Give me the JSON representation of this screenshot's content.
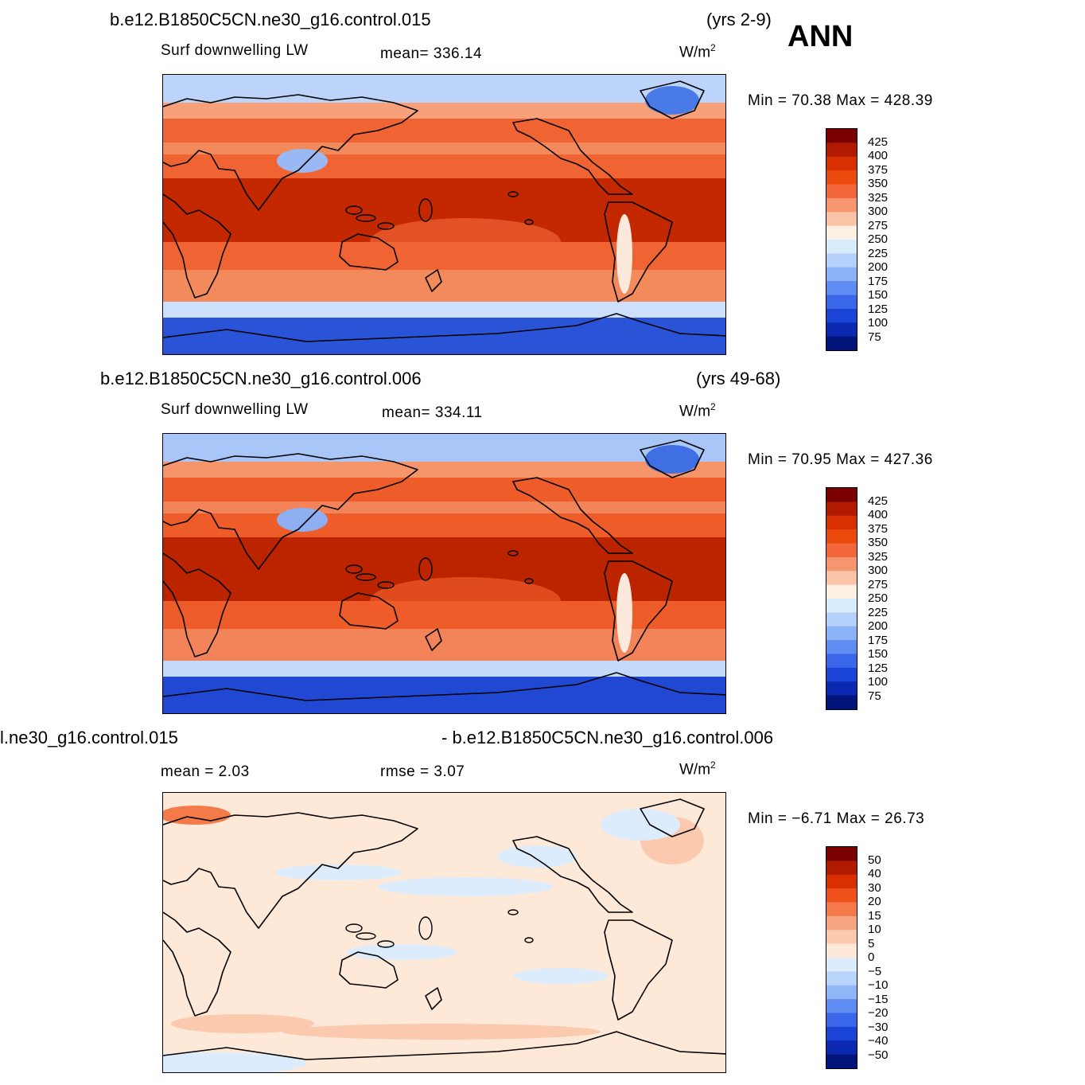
{
  "ann_label": "ANN",
  "panels": [
    {
      "case": "b.e12.B1850C5CN.ne30_g16.control.015",
      "years": "(yrs 2-9)",
      "variable": "Surf  downwelling  LW",
      "stat1": "mean=  336.14",
      "stat2": "",
      "units_base": "W/m",
      "units_exp": "2",
      "minmax": "Min =    70.38  Max  =  428.39",
      "colorbar": {
        "labels": [
          "425",
          "400",
          "375",
          "350",
          "325",
          "300",
          "275",
          "250",
          "225",
          "200",
          "175",
          "150",
          "125",
          "100",
          "75"
        ],
        "colors": [
          "#7a0000",
          "#b01a00",
          "#d83000",
          "#ea4a0c",
          "#f2663a",
          "#f7966e",
          "#fbc4a6",
          "#fff0e4",
          "#d8ecfc",
          "#b4d0fb",
          "#8cb2f8",
          "#5f8cf2",
          "#3a66ea",
          "#1a44d6",
          "#0a28b0",
          "#00147a"
        ]
      },
      "map_fields": {
        "arctic": "#bcd4fa",
        "north_mid": "#f8a07a",
        "subtropic": "#f06434",
        "tropic": "#c42800",
        "south_mid": "#f38a5c",
        "southern_ocean": "#cce0fb",
        "antarctic": "#2a54d8",
        "tibet": "#9ab8f4",
        "greenland": "#4a7ae6"
      }
    },
    {
      "case": "b.e12.B1850C5CN.ne30_g16.control.006",
      "years": "(yrs 49-68)",
      "variable": "Surf  downwelling  LW",
      "stat1": "mean=  334.11",
      "stat2": "",
      "units_base": "W/m",
      "units_exp": "2",
      "minmax": "Min =    70.95  Max  =  427.36",
      "colorbar": {
        "labels": [
          "425",
          "400",
          "375",
          "350",
          "325",
          "300",
          "275",
          "250",
          "225",
          "200",
          "175",
          "150",
          "125",
          "100",
          "75"
        ],
        "colors": [
          "#7a0000",
          "#b01a00",
          "#d83000",
          "#ea4a0c",
          "#f2663a",
          "#f7966e",
          "#fbc4a6",
          "#fff0e4",
          "#d8ecfc",
          "#b4d0fb",
          "#8cb2f8",
          "#5f8cf2",
          "#3a66ea",
          "#1a44d6",
          "#0a28b0",
          "#00147a"
        ]
      },
      "map_fields": {
        "arctic": "#a8c6f8",
        "north_mid": "#f6946a",
        "subtropic": "#ee5c2a",
        "tropic": "#bc2400",
        "south_mid": "#f3845a",
        "southern_ocean": "#c4dafb",
        "antarctic": "#2048d2",
        "tibet": "#8eaef2",
        "greenland": "#3f6fe2"
      }
    },
    {
      "case": "l.ne30_g16.control.015",
      "years": "- b.e12.B1850C5CN.ne30_g16.control.006",
      "variable": "",
      "stat1": "mean =     2.03",
      "stat2": "rmse =     3.07",
      "units_base": "W/m",
      "units_exp": "2",
      "minmax": "Min =   −6.71  Max  =    26.73",
      "colorbar": {
        "labels": [
          "50",
          "40",
          "30",
          "20",
          "15",
          "10",
          "5",
          "0",
          "−5",
          "−10",
          "−15",
          "−20",
          "−30",
          "−40",
          "−50"
        ],
        "colors": [
          "#7a0000",
          "#b01a00",
          "#d83000",
          "#f0501a",
          "#f47a4a",
          "#f8a682",
          "#fbcaae",
          "#fee8d8",
          "#dcecfc",
          "#b8d4fb",
          "#90b6f8",
          "#5f8cf2",
          "#3a66ea",
          "#1a44d6",
          "#0a28b0",
          "#00147a"
        ]
      },
      "map_fields": {
        "base": "#fee8d8",
        "pos": "#fbcaae",
        "neg": "#dcecfc",
        "strong": "#f47a4a"
      }
    }
  ]
}
